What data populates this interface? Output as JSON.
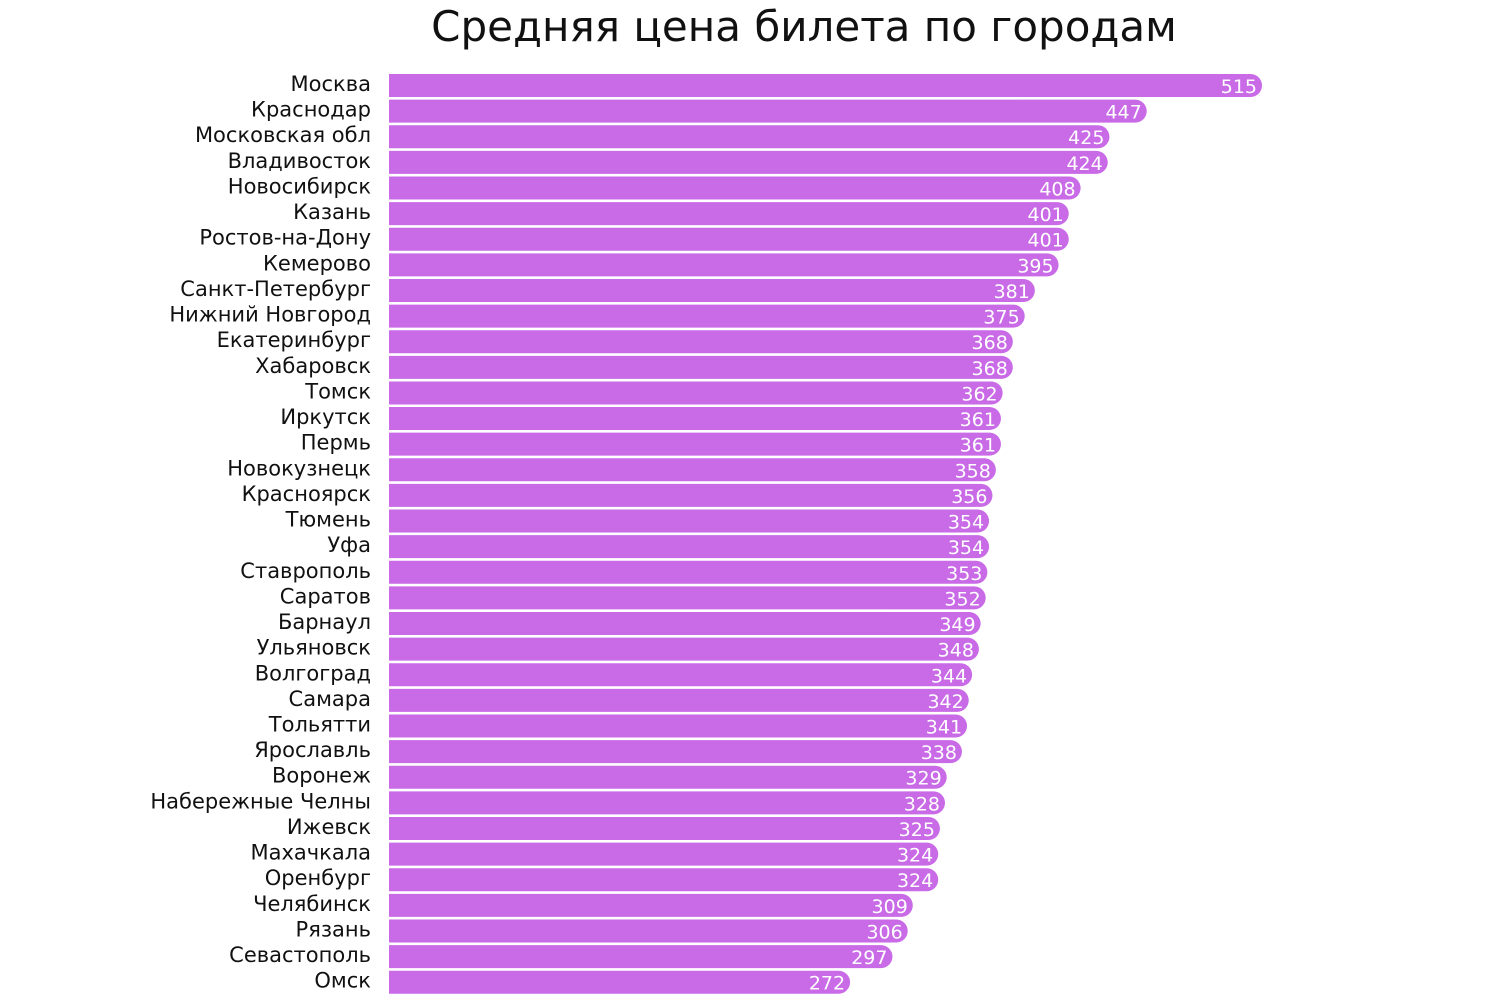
{
  "chart_data": {
    "type": "bar",
    "orientation": "horizontal",
    "title": "Средняя цена билета по городам",
    "categories": [
      "Москва",
      "Краснодар",
      "Московская обл",
      "Владивосток",
      "Новосибирск",
      "Казань",
      "Ростов-на-Дону",
      "Кемерово",
      "Санкт-Петербург",
      "Нижний Новгород",
      "Екатеринбург",
      "Хабаровск",
      "Томск",
      "Иркутск",
      "Пермь",
      "Новокузнецк",
      "Красноярск",
      "Тюмень",
      "Уфа",
      "Ставрополь",
      "Саратов",
      "Барнаул",
      "Ульяновск",
      "Волгоград",
      "Самара",
      "Тольятти",
      "Ярославль",
      "Воронеж",
      "Набережные Челны",
      "Ижевск",
      "Махачкала",
      "Оренбург",
      "Челябинск",
      "Рязань",
      "Севастополь",
      "Омск"
    ],
    "values": [
      515,
      447,
      425,
      424,
      408,
      401,
      401,
      395,
      381,
      375,
      368,
      368,
      362,
      361,
      361,
      358,
      356,
      354,
      354,
      353,
      352,
      349,
      348,
      344,
      342,
      341,
      338,
      329,
      328,
      325,
      324,
      324,
      309,
      306,
      297,
      272
    ],
    "xlim": [
      0,
      515
    ],
    "grid": false,
    "legend": "none",
    "colors": {
      "bar": "#c96ae6",
      "value_label": "#ffffff",
      "category_label": "#111111"
    }
  }
}
